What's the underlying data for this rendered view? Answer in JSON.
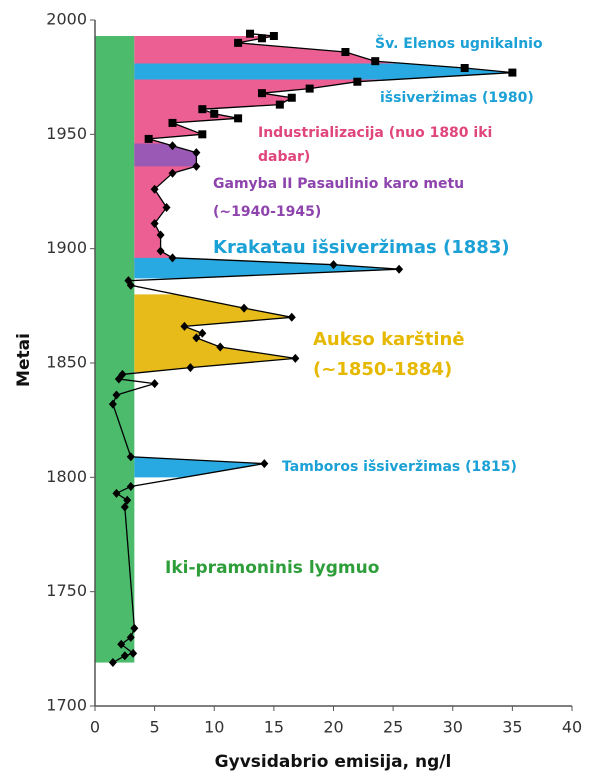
{
  "chart_data": {
    "type": "line",
    "xlabel": "Gyvsidabrio emisija, ng/l",
    "ylabel": "Metai",
    "xlim": [
      0,
      40
    ],
    "xticks": [
      0,
      5,
      10,
      15,
      20,
      25,
      30,
      35,
      40
    ],
    "ylim": [
      1700,
      2000
    ],
    "yticks": [
      1700,
      1750,
      1800,
      1850,
      1900,
      1950,
      2000
    ],
    "grid": false,
    "line_color": "#000000",
    "series": [
      {
        "marker": "diamond",
        "color": "#000000",
        "x": [
          1.5,
          2.5,
          3.2,
          2.2,
          3.0,
          3.3,
          2.5,
          2.7,
          1.8,
          3.0,
          14.2,
          3.0,
          1.5,
          1.8,
          5.0,
          2.0,
          2.3,
          8.0,
          16.8,
          10.5,
          8.5,
          9.0,
          7.5,
          16.5,
          12.5,
          3.0,
          2.8,
          25.5,
          20.0,
          6.5,
          5.5,
          5.5,
          5.0,
          6.0,
          5.0,
          6.5,
          8.5,
          8.5,
          6.5
        ],
        "y": [
          1719,
          1722,
          1723,
          1727,
          1730,
          1734,
          1787,
          1790,
          1793,
          1796,
          1806,
          1809,
          1832,
          1836,
          1841,
          1843,
          1845,
          1848,
          1852,
          1857,
          1861,
          1863,
          1866,
          1870,
          1874,
          1884,
          1886,
          1891,
          1893,
          1896,
          1899,
          1906,
          1911,
          1918,
          1926,
          1933,
          1936,
          1942,
          1945
        ]
      },
      {
        "marker": "square",
        "color": "#000000",
        "x": [
          4.5,
          9.0,
          6.5,
          12.0,
          10.0,
          9.0,
          15.5,
          16.5,
          14.0,
          18.0,
          22.0,
          35.0,
          31.0,
          23.5,
          21.0,
          12.0,
          14.0,
          15.0,
          13.0
        ],
        "y": [
          1948,
          1950,
          1955,
          1957,
          1959,
          1961,
          1963,
          1966,
          1968,
          1970,
          1973,
          1977,
          1979,
          1982,
          1986,
          1990,
          1992,
          1993,
          1994
        ]
      }
    ],
    "regions": [
      {
        "color": "#4cbb6c",
        "years": [
          1719,
          1993
        ],
        "x": [
          0,
          3.3
        ]
      },
      {
        "color": "#ec5f93",
        "years": [
          1889,
          1993
        ],
        "baseline": 3.3
      },
      {
        "color": "#29a9e1",
        "years": [
          1800,
          1812
        ],
        "baseline": 3.3
      },
      {
        "color": "#e6bb1a",
        "years": [
          1846,
          1880
        ],
        "baseline": 3.3
      },
      {
        "color": "#29a9e1",
        "years": [
          1887,
          1896
        ],
        "baseline": 3.3
      },
      {
        "color": "#29a9e1",
        "years": [
          1974,
          1981
        ],
        "baseline": 3.3
      },
      {
        "color": "#9b59b6",
        "years": [
          1936,
          1946
        ],
        "baseline": 3.3
      }
    ],
    "annotations": [
      {
        "lines": [
          "Šv. Elenos ugnikalnio",
          "išsiveržimas (1980)"
        ],
        "color": "#1ba1d6"
      },
      {
        "lines": [
          "Industrializacija (nuo 1880 iki",
          "dabar)"
        ],
        "color": "#e0457b"
      },
      {
        "lines": [
          "Gamyba II Pasaulinio karo metu",
          "(~1940-1945)"
        ],
        "color": "#8e44ad"
      },
      {
        "lines": [
          "Krakatau išsiveržimas (1883)"
        ],
        "color": "#1ba1d6"
      },
      {
        "lines": [
          "Aukso karštinė",
          "(~1850-1884)"
        ],
        "color": "#e6b800"
      },
      {
        "lines": [
          "Tamboros išsiveržimas (1815)"
        ],
        "color": "#1ba1d6"
      },
      {
        "lines": [
          "Iki-pramoninis lygmuo"
        ],
        "color": "#2e9e3a"
      }
    ]
  }
}
